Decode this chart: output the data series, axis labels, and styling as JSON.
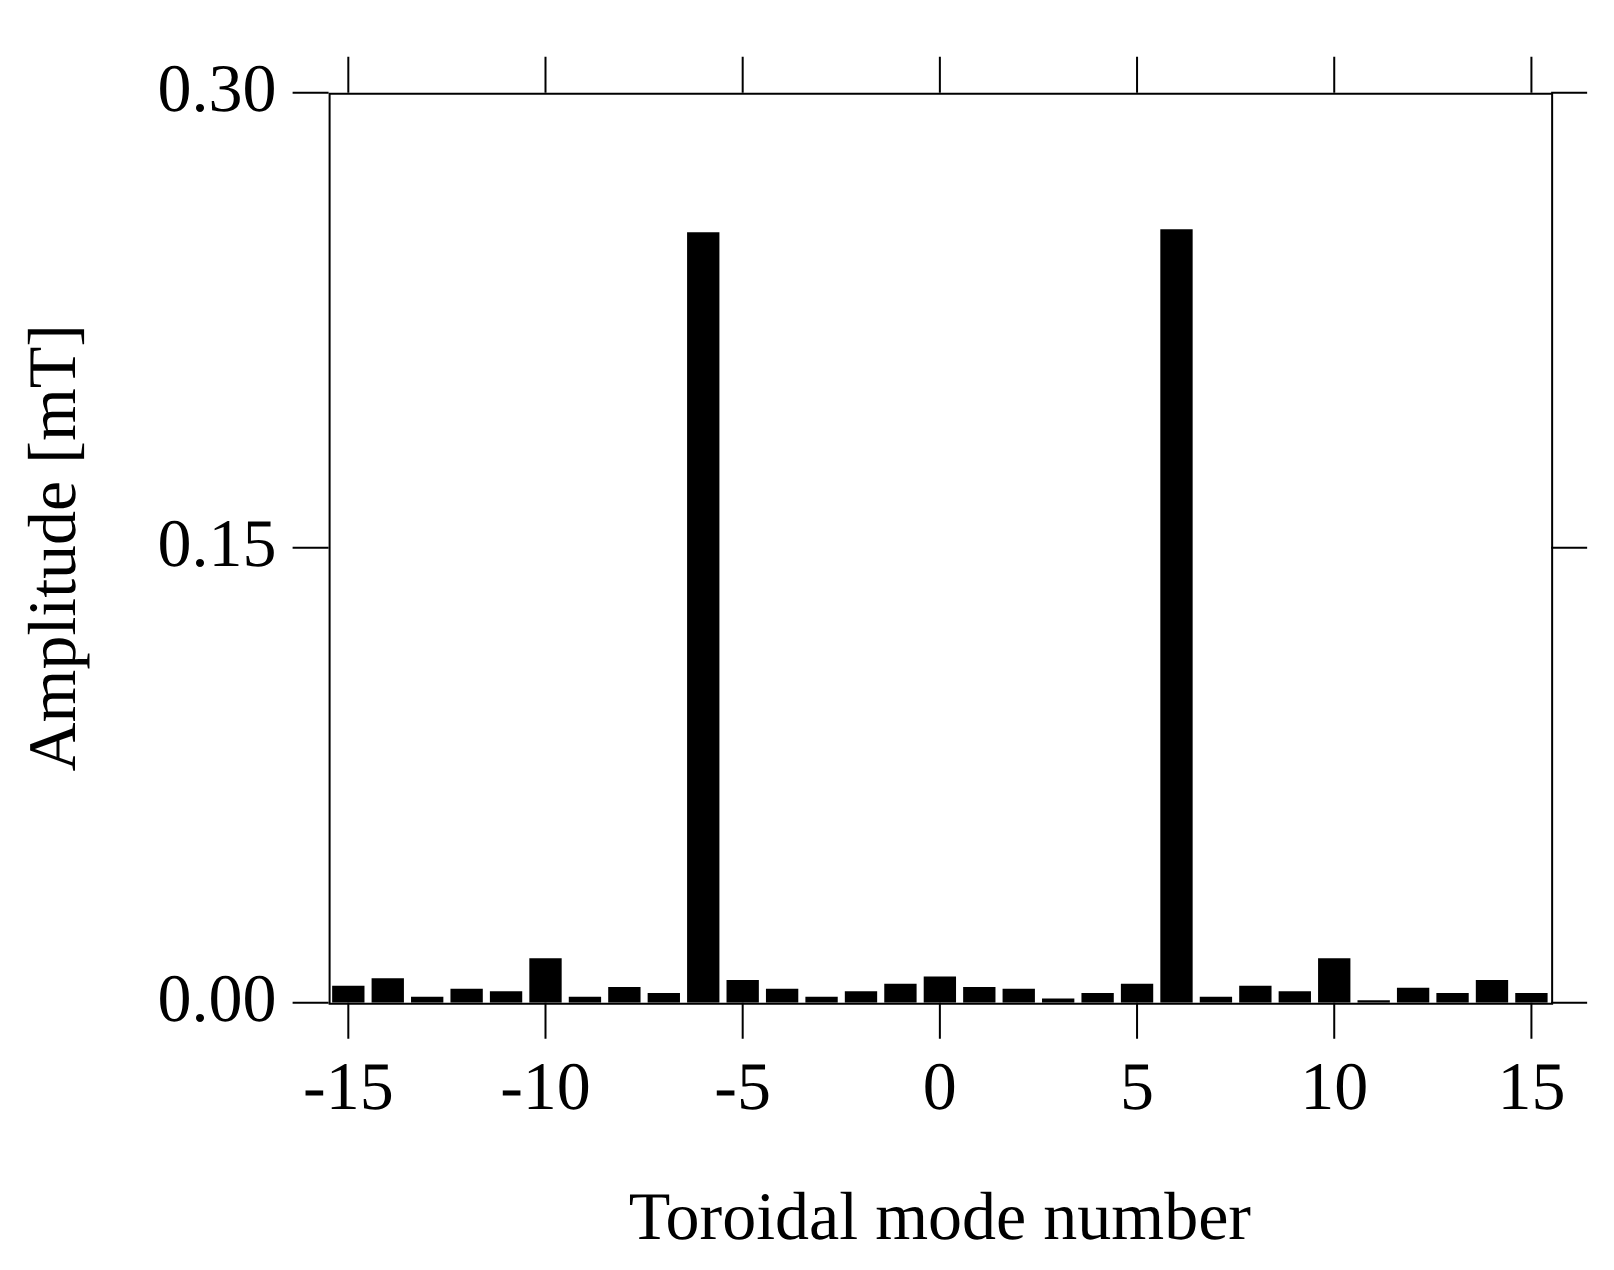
{
  "chart_data": {
    "type": "bar",
    "xlabel": "Toroidal mode number",
    "ylabel": "Amplitude [mT]",
    "categories": [
      "-15",
      null,
      null,
      null,
      null,
      "-10",
      null,
      null,
      null,
      null,
      "-5",
      null,
      null,
      null,
      null,
      "0",
      null,
      null,
      null,
      null,
      "5",
      null,
      null,
      null,
      null,
      "10",
      null,
      null,
      null,
      null,
      "15"
    ],
    "values": [
      0.0056,
      0.0081,
      0.002,
      0.0046,
      0.0038,
      0.0147,
      0.002,
      0.0052,
      0.0032,
      0.254,
      0.0075,
      0.0046,
      0.002,
      0.0038,
      0.0063,
      0.0087,
      0.0052,
      0.0046,
      0.0014,
      0.0032,
      0.0063,
      0.255,
      0.002,
      0.0056,
      0.0038,
      0.0147,
      0.0008,
      0.005,
      0.0032,
      0.0075,
      0.0032
    ],
    "color": "#000000",
    "ylim": [
      0,
      0.3
    ],
    "yticks": [
      {
        "value": 0,
        "label": "0.00"
      },
      {
        "value": 0.15,
        "label": "0.15"
      },
      {
        "value": 0.3,
        "label": "0.30"
      }
    ],
    "grid": false,
    "legend": false
  }
}
